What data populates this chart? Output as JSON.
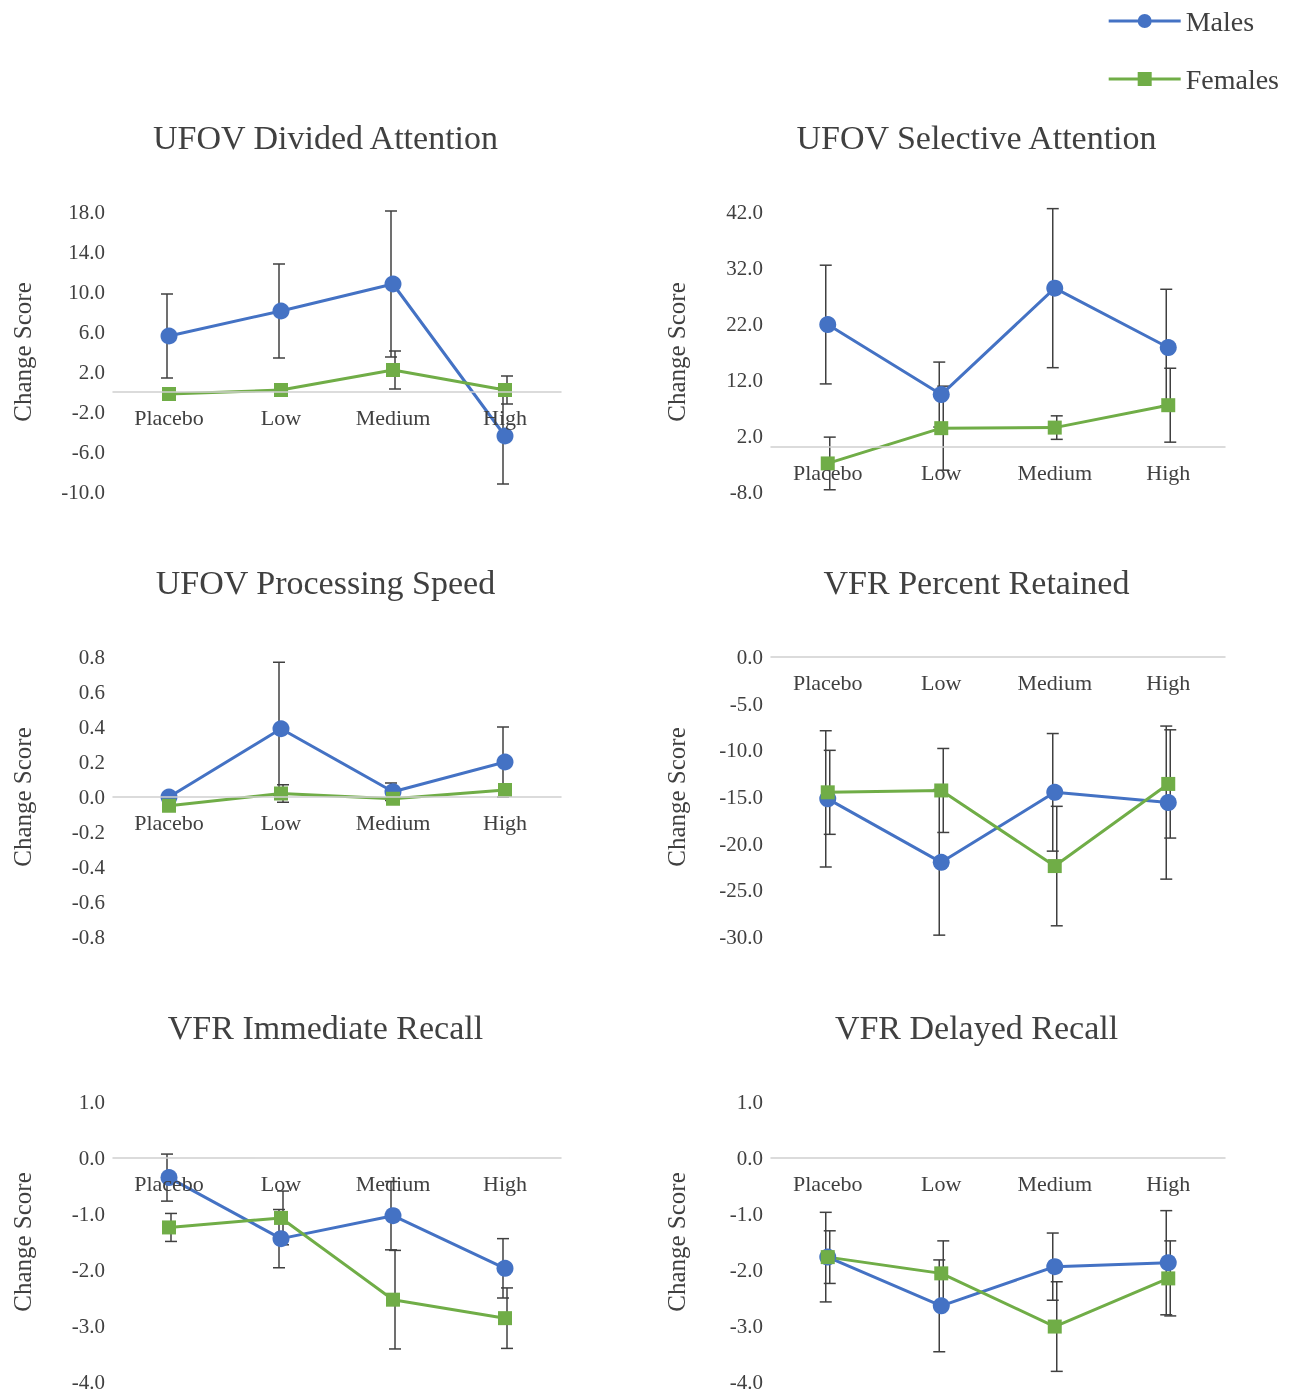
{
  "chart_data": [
    {
      "type": "line",
      "title": "UFOV Divided Attention",
      "ylabel": "Change Score",
      "categories": [
        "Placebo",
        "Low",
        "Medium",
        "High"
      ],
      "ylim": [
        -10,
        18
      ],
      "yticks": [
        {
          "value": 18,
          "label": "18.0"
        },
        {
          "value": 14,
          "label": "14.0"
        },
        {
          "value": 10,
          "label": "10.0"
        },
        {
          "value": 6,
          "label": "6.0"
        },
        {
          "value": 2,
          "label": "2.0"
        },
        {
          "value": -2,
          "label": "-2.0"
        },
        {
          "value": -6,
          "label": "-6.0"
        },
        {
          "value": -10,
          "label": "-10.0"
        }
      ],
      "grid": false,
      "legend": false,
      "series": [
        {
          "color": "#4472c4",
          "marker": "circle",
          "values": [
            5.6,
            8.1,
            10.8,
            -4.4
          ],
          "errors": [
            4.2,
            4.7,
            7.3,
            4.8
          ]
        },
        {
          "color": "#70ad47",
          "marker": "square",
          "values": [
            -0.2,
            0.2,
            2.2,
            0.2
          ],
          "errors": [
            null,
            null,
            1.9,
            1.4
          ]
        }
      ]
    },
    {
      "type": "line",
      "title": "UFOV Selective Attention",
      "ylabel": "Change Score",
      "categories": [
        "Placebo",
        "Low",
        "Medium",
        "High"
      ],
      "ylim": [
        -8,
        42
      ],
      "yticks": [
        {
          "value": 42,
          "label": "42.0"
        },
        {
          "value": 32,
          "label": "32.0"
        },
        {
          "value": 22,
          "label": "22.0"
        },
        {
          "value": 12,
          "label": "12.0"
        },
        {
          "value": 2,
          "label": "2.0"
        },
        {
          "value": -8,
          "label": "-8.0"
        }
      ],
      "grid": false,
      "legend": "top right",
      "series": [
        {
          "name": "Males",
          "color": "#4472c4",
          "marker": "circle",
          "values": [
            21.9,
            9.4,
            28.4,
            17.8
          ],
          "errors": [
            10.6,
            5.8,
            14.2,
            10.4
          ]
        },
        {
          "name": "Females",
          "color": "#70ad47",
          "marker": "square",
          "values": [
            -2.9,
            3.4,
            3.5,
            7.5
          ],
          "errors": [
            4.7,
            7.5,
            2.1,
            6.6
          ]
        }
      ]
    },
    {
      "type": "line",
      "title": "UFOV Processing Speed",
      "ylabel": "Change Score",
      "categories": [
        "Placebo",
        "Low",
        "Medium",
        "High"
      ],
      "ylim": [
        -0.8,
        0.8
      ],
      "yticks": [
        {
          "value": 0.8,
          "label": "0.8"
        },
        {
          "value": 0.6,
          "label": "0.6"
        },
        {
          "value": 0.4,
          "label": "0.4"
        },
        {
          "value": 0.2,
          "label": "0.2"
        },
        {
          "value": 0,
          "label": "0.0"
        },
        {
          "value": -0.2,
          "label": "-0.2"
        },
        {
          "value": -0.4,
          "label": "-0.4"
        },
        {
          "value": -0.6,
          "label": "-0.6"
        },
        {
          "value": -0.8,
          "label": "-0.8"
        }
      ],
      "grid": false,
      "legend": false,
      "series": [
        {
          "color": "#4472c4",
          "marker": "circle",
          "values": [
            0.0,
            0.39,
            0.03,
            0.2
          ],
          "errors": [
            null,
            0.38,
            0.05,
            0.2
          ]
        },
        {
          "color": "#70ad47",
          "marker": "square",
          "values": [
            -0.05,
            0.02,
            -0.01,
            0.04
          ],
          "errors": [
            null,
            0.05,
            null,
            null
          ]
        }
      ]
    },
    {
      "type": "line",
      "title": "VFR Percent Retained",
      "ylabel": "Change Score",
      "categories": [
        "Placebo",
        "Low",
        "Medium",
        "High"
      ],
      "ylim": [
        -30,
        0
      ],
      "yticks": [
        {
          "value": 0,
          "label": "0.0"
        },
        {
          "value": -5,
          "label": "-5.0"
        },
        {
          "value": -10,
          "label": "-10.0"
        },
        {
          "value": -15,
          "label": "-15.0"
        },
        {
          "value": -20,
          "label": "-20.0"
        },
        {
          "value": -25,
          "label": "-25.0"
        },
        {
          "value": -30,
          "label": "-30.0"
        }
      ],
      "grid": false,
      "legend": false,
      "series": [
        {
          "color": "#4472c4",
          "marker": "circle",
          "values": [
            -15.2,
            -22.0,
            -14.5,
            -15.6
          ],
          "errors": [
            7.3,
            7.8,
            6.3,
            8.2
          ]
        },
        {
          "color": "#70ad47",
          "marker": "square",
          "values": [
            -14.5,
            -14.3,
            -22.4,
            -13.6
          ],
          "errors": [
            4.5,
            4.5,
            6.4,
            5.8
          ]
        }
      ]
    },
    {
      "type": "line",
      "title": "VFR Immediate Recall",
      "ylabel": "Change Score",
      "categories": [
        "Placebo",
        "Low",
        "Medium",
        "High"
      ],
      "ylim": [
        -4,
        1
      ],
      "yticks": [
        {
          "value": 1,
          "label": "1.0"
        },
        {
          "value": 0,
          "label": "0.0"
        },
        {
          "value": -1,
          "label": "-1.0"
        },
        {
          "value": -2,
          "label": "-2.0"
        },
        {
          "value": -3,
          "label": "-3.0"
        },
        {
          "value": -4,
          "label": "-4.0"
        }
      ],
      "grid": false,
      "legend": false,
      "series": [
        {
          "color": "#4472c4",
          "marker": "circle",
          "values": [
            -0.35,
            -1.44,
            -1.03,
            -1.97
          ],
          "errors": [
            0.42,
            0.52,
            0.61,
            0.53
          ]
        },
        {
          "color": "#70ad47",
          "marker": "square",
          "values": [
            -1.24,
            -1.07,
            -2.53,
            -2.86
          ],
          "errors": [
            0.25,
            0.48,
            0.88,
            0.54
          ]
        }
      ]
    },
    {
      "type": "line",
      "title": "VFR Delayed Recall",
      "ylabel": "Change Score",
      "categories": [
        "Placebo",
        "Low",
        "Medium",
        "High"
      ],
      "ylim": [
        -4,
        1
      ],
      "yticks": [
        {
          "value": 1,
          "label": "1.0"
        },
        {
          "value": 0,
          "label": "0.0"
        },
        {
          "value": -1,
          "label": "-1.0"
        },
        {
          "value": -2,
          "label": "-2.0"
        },
        {
          "value": -3,
          "label": "-3.0"
        },
        {
          "value": -4,
          "label": "-4.0"
        }
      ],
      "grid": false,
      "legend": false,
      "series": [
        {
          "color": "#4472c4",
          "marker": "circle",
          "values": [
            -1.77,
            -2.64,
            -1.94,
            -1.87
          ],
          "errors": [
            0.8,
            0.82,
            0.6,
            0.93
          ]
        },
        {
          "color": "#70ad47",
          "marker": "square",
          "values": [
            -1.77,
            -2.06,
            -3.01,
            -2.15
          ],
          "errors": [
            0.47,
            0.58,
            0.8,
            0.67
          ]
        }
      ]
    }
  ]
}
